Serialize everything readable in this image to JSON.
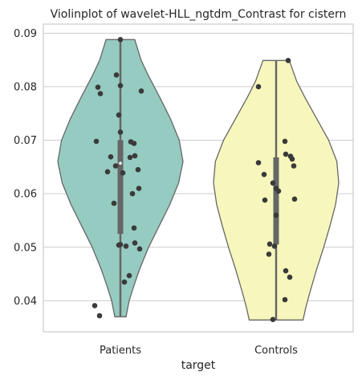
{
  "chart_data": {
    "type": "violin",
    "title": "Violinplot of wavelet-HLL_ngtdm_Contrast for cistern",
    "xlabel": "target",
    "ylabel": "",
    "categories": [
      "Patients",
      "Controls"
    ],
    "ylim": [
      0.0342,
      0.0917
    ],
    "yticks": [
      0.04,
      0.05,
      0.06,
      0.07,
      0.08,
      0.09
    ],
    "ytick_labels": [
      "0.04",
      "0.05",
      "0.06",
      "0.07",
      "0.08",
      "0.09"
    ],
    "grid": true,
    "colors": {
      "Patients": "#96cbc1",
      "Controls": "#f7f7bd",
      "edge": "#666666",
      "points": "#3a3a3a"
    },
    "series": [
      {
        "category": "Patients",
        "min": 0.037,
        "q1": 0.0525,
        "median": 0.0657,
        "q3": 0.07,
        "max": 0.0888,
        "density": [
          [
            0.037,
            0.09
          ],
          [
            0.04,
            0.14
          ],
          [
            0.043,
            0.22
          ],
          [
            0.046,
            0.31
          ],
          [
            0.05,
            0.45
          ],
          [
            0.054,
            0.62
          ],
          [
            0.058,
            0.79
          ],
          [
            0.062,
            0.93
          ],
          [
            0.066,
            1.0
          ],
          [
            0.07,
            0.94
          ],
          [
            0.074,
            0.8
          ],
          [
            0.078,
            0.63
          ],
          [
            0.082,
            0.45
          ],
          [
            0.085,
            0.33
          ],
          [
            0.0888,
            0.23
          ]
        ],
        "points": [
          [
            -0.32,
            0.0391
          ],
          [
            -0.26,
            0.0372
          ],
          [
            -0.3,
            0.0698
          ],
          [
            -0.28,
            0.0799
          ],
          [
            -0.25,
            0.0787
          ],
          [
            -0.05,
            0.0822
          ],
          [
            0.0,
            0.0802
          ],
          [
            0.26,
            0.0792
          ],
          [
            0.0,
            0.0888
          ],
          [
            -0.02,
            0.0747
          ],
          [
            0.0,
            0.0715
          ],
          [
            0.13,
            0.0697
          ],
          [
            0.17,
            0.0694
          ],
          [
            0.18,
            0.0671
          ],
          [
            0.12,
            0.0668
          ],
          [
            -0.12,
            0.0669
          ],
          [
            -0.06,
            0.0652
          ],
          [
            0.22,
            0.0645
          ],
          [
            -0.16,
            0.0641
          ],
          [
            0.03,
            0.0639
          ],
          [
            0.23,
            0.061
          ],
          [
            0.15,
            0.06
          ],
          [
            -0.08,
            0.0582
          ],
          [
            0.17,
            0.0536
          ],
          [
            0.0,
            0.0505
          ],
          [
            0.07,
            0.0502
          ],
          [
            -0.02,
            0.0504
          ],
          [
            0.18,
            0.0508
          ],
          [
            0.24,
            0.0497
          ],
          [
            0.11,
            0.0447
          ],
          [
            0.05,
            0.0435
          ]
        ]
      },
      {
        "category": "Controls",
        "min": 0.0364,
        "q1": 0.0505,
        "median": 0.0608,
        "q3": 0.0668,
        "max": 0.0849,
        "density": [
          [
            0.0364,
            0.43
          ],
          [
            0.039,
            0.48
          ],
          [
            0.042,
            0.55
          ],
          [
            0.046,
            0.65
          ],
          [
            0.05,
            0.76
          ],
          [
            0.054,
            0.86
          ],
          [
            0.058,
            0.95
          ],
          [
            0.062,
            1.0
          ],
          [
            0.066,
            0.97
          ],
          [
            0.07,
            0.84
          ],
          [
            0.074,
            0.65
          ],
          [
            0.078,
            0.46
          ],
          [
            0.081,
            0.33
          ],
          [
            0.0849,
            0.21
          ]
        ],
        "points": [
          [
            0.15,
            0.0849
          ],
          [
            -0.22,
            0.08
          ],
          [
            0.11,
            0.0698
          ],
          [
            0.12,
            0.0674
          ],
          [
            0.18,
            0.067
          ],
          [
            0.2,
            0.0665
          ],
          [
            -0.22,
            0.0658
          ],
          [
            0.22,
            0.0652
          ],
          [
            -0.15,
            0.0636
          ],
          [
            -0.04,
            0.062
          ],
          [
            0.0,
            0.061
          ],
          [
            0.03,
            0.0605
          ],
          [
            -0.14,
            0.0588
          ],
          [
            0.23,
            0.059
          ],
          [
            0.0,
            0.056
          ],
          [
            -0.08,
            0.0506
          ],
          [
            -0.02,
            0.0502
          ],
          [
            -0.09,
            0.0487
          ],
          [
            0.12,
            0.0456
          ],
          [
            0.17,
            0.0444
          ],
          [
            0.11,
            0.0402
          ],
          [
            -0.04,
            0.0365
          ]
        ]
      }
    ]
  }
}
